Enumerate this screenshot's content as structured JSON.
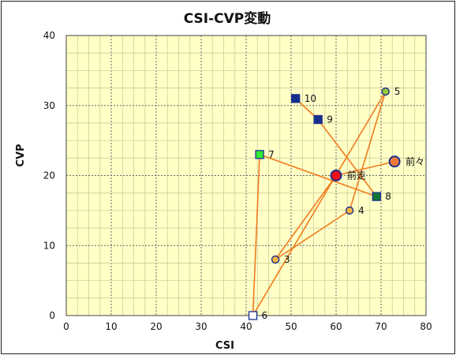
{
  "chart_data": {
    "type": "scatter",
    "title": "CSI-CVP変動",
    "xlabel": "CSI",
    "ylabel": "CVP",
    "xlim": [
      0,
      80
    ],
    "ylim": [
      0,
      40
    ],
    "x_ticks": [
      0,
      10,
      20,
      30,
      40,
      50,
      60,
      70,
      80
    ],
    "y_ticks": [
      0,
      10,
      20,
      30,
      40
    ],
    "x_tick_labels": [
      "0",
      "10",
      "20",
      "30",
      "40",
      "50",
      "60",
      "70",
      "80"
    ],
    "y_tick_labels": [
      "0",
      "10",
      "20",
      "30",
      "40"
    ],
    "grid": true,
    "plot_background": "#ffffc6",
    "line_color": "#f07c1e",
    "path_order": [
      "前々",
      "前走",
      "3",
      "4",
      "5",
      "6",
      "7",
      "8",
      "9",
      "10"
    ],
    "points": [
      {
        "label": "前々",
        "x": 73,
        "y": 22,
        "shape": "circle",
        "fill": "#ef7a3a"
      },
      {
        "label": "前走",
        "x": 60,
        "y": 20,
        "shape": "circle",
        "fill": "#ee1111"
      },
      {
        "label": "3",
        "x": 46.5,
        "y": 8,
        "shape": "circle",
        "fill": "#f4b83e"
      },
      {
        "label": "4",
        "x": 63,
        "y": 15,
        "shape": "circle",
        "fill": "#f4b83e"
      },
      {
        "label": "5",
        "x": 71,
        "y": 32,
        "shape": "circle",
        "fill": "#9acd32"
      },
      {
        "label": "6",
        "x": 41.5,
        "y": 0,
        "shape": "square",
        "fill": "#ffffff"
      },
      {
        "label": "7",
        "x": 43,
        "y": 23,
        "shape": "square",
        "fill": "#33ee33"
      },
      {
        "label": "8",
        "x": 69,
        "y": 17,
        "shape": "square",
        "fill": "#117733"
      },
      {
        "label": "9",
        "x": 56,
        "y": 28,
        "shape": "square",
        "fill": "#162e8c"
      },
      {
        "label": "10",
        "x": 51,
        "y": 31,
        "shape": "square",
        "fill": "#162e8c"
      }
    ]
  }
}
